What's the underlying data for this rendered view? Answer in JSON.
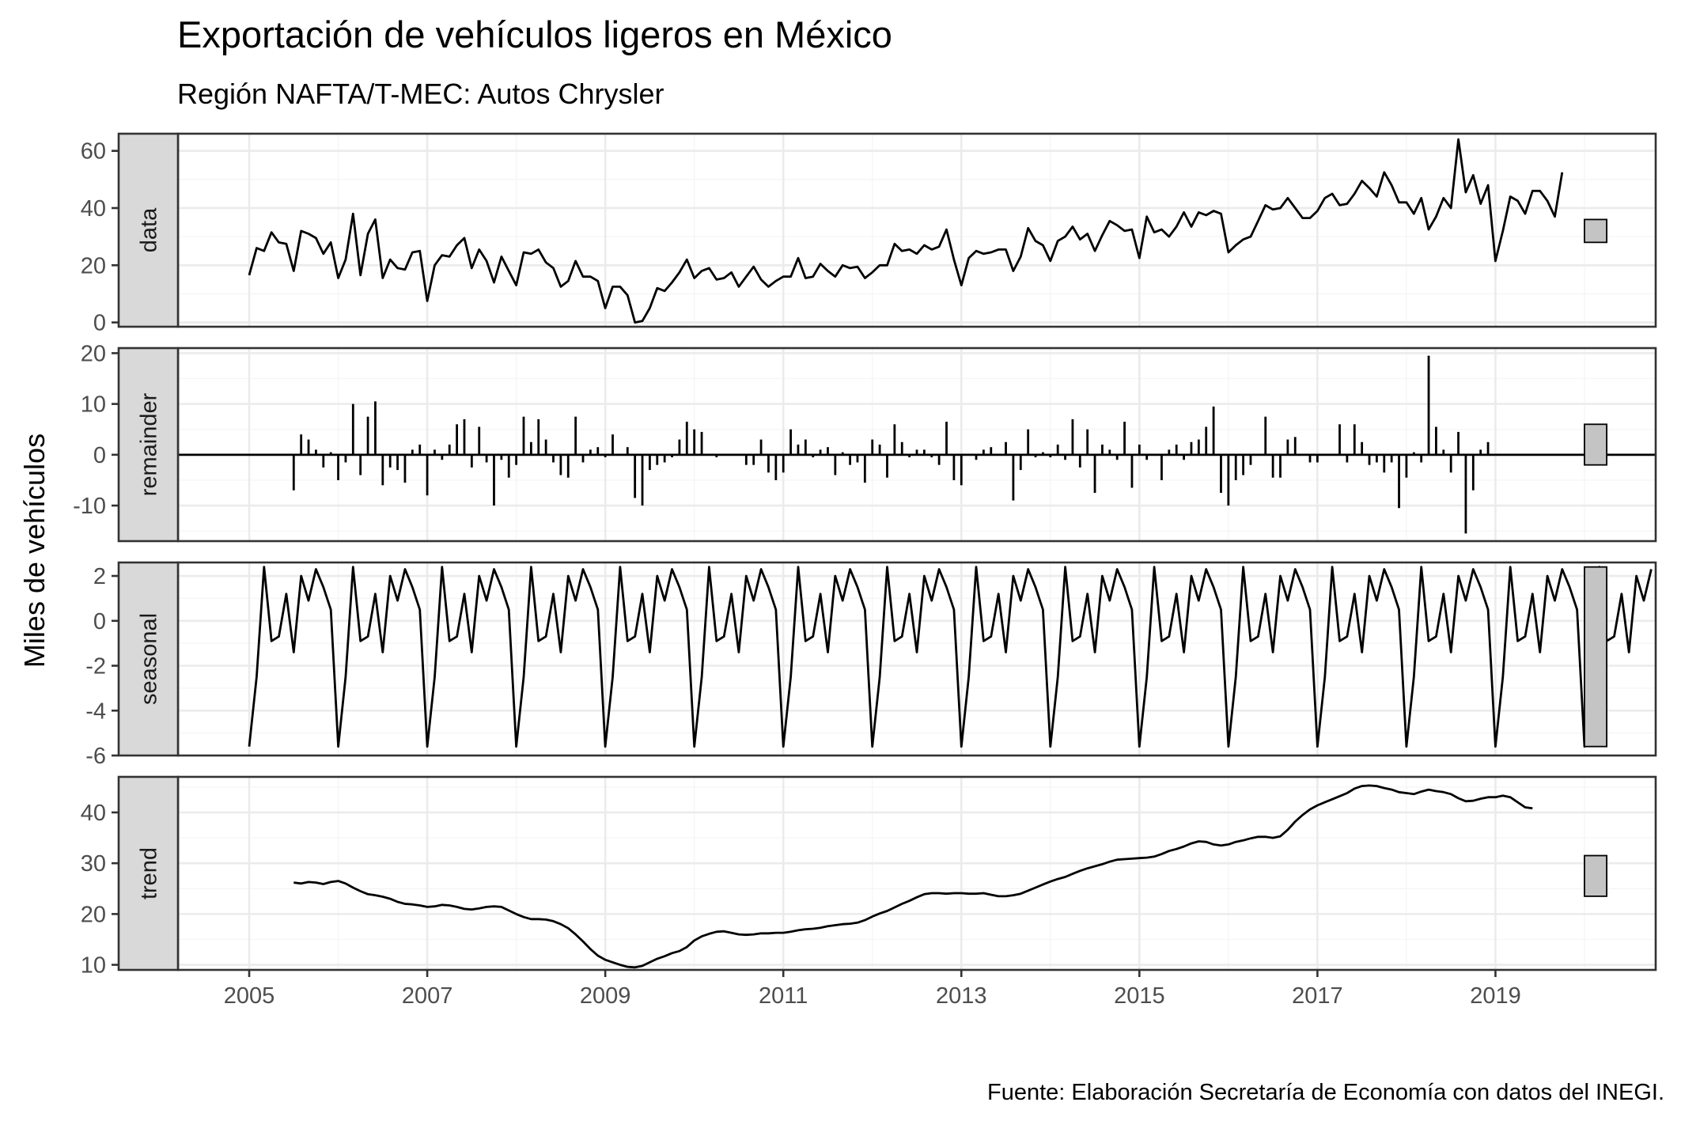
{
  "chart_data": {
    "type": "line",
    "title": "Exportación de vehículos ligeros en México",
    "subtitle": "Región NAFTA/T-MEC: Autos Chrysler",
    "ylabel": "Miles de vehículos",
    "xlabel": "",
    "caption": "Fuente: Elaboración Secretaría de Economía con datos del INEGI.",
    "x_start": 2005.0,
    "x_step_months": 1,
    "xlim": [
      2004.2,
      2020.8
    ],
    "x_ticks": [
      2005,
      2007,
      2009,
      2011,
      2013,
      2015,
      2017,
      2019
    ],
    "x_tick_labels": [
      "2005",
      "2007",
      "2009",
      "2011",
      "2013",
      "2015",
      "2017",
      "2019"
    ],
    "grid": true,
    "panels": [
      {
        "label": "data",
        "kind": "line",
        "ylim": [
          -1.5,
          66
        ],
        "y_ticks": [
          0,
          20,
          40,
          60
        ],
        "y_tick_labels": [
          "0",
          "20",
          "40",
          "60"
        ],
        "range_bar": [
          28,
          36
        ],
        "values": [
          16.5,
          26,
          25,
          31.5,
          28,
          27.5,
          18,
          32,
          31,
          29.5,
          24,
          28,
          15.5,
          22,
          38,
          16.5,
          31,
          36,
          15.5,
          22,
          19,
          18.5,
          24.5,
          25,
          7.5,
          20,
          23.5,
          23,
          27,
          29.5,
          19,
          25.5,
          21.5,
          14,
          23,
          18,
          13,
          24.5,
          24,
          25.5,
          21,
          19,
          12.5,
          14.5,
          21.5,
          16,
          16,
          14.5,
          5,
          12.5,
          12.5,
          9.5,
          0,
          0.5,
          5,
          12,
          11,
          14,
          17.5,
          22,
          15.5,
          18,
          19,
          15,
          15.5,
          17.5,
          12.5,
          16,
          19.5,
          15,
          12.5,
          14.5,
          16,
          16,
          22.5,
          15.5,
          16,
          20.5,
          18,
          16,
          20,
          19,
          19.5,
          15.5,
          17.5,
          20,
          20,
          27.5,
          25,
          25.5,
          24,
          27,
          25.5,
          26.5,
          32.5,
          22,
          13,
          22.5,
          25,
          24,
          24.5,
          25.5,
          25.5,
          18,
          23,
          33,
          28.5,
          27,
          21.5,
          28.5,
          30,
          33.5,
          29,
          31,
          25,
          30.5,
          35.5,
          34,
          32,
          32.5,
          22.5,
          37,
          31.5,
          32.5,
          30,
          33.5,
          38.5,
          33.5,
          38.5,
          37.5,
          39,
          38,
          24.5,
          27,
          29,
          30,
          35.5,
          41,
          39.5,
          40,
          43.5,
          40,
          36.5,
          36.5,
          39,
          43.5,
          45,
          41,
          41.5,
          45,
          49.5,
          47,
          44,
          52.5,
          48,
          42,
          42,
          38,
          43.5,
          32.5,
          37,
          43.5,
          40,
          64,
          45.5,
          51.5,
          41.5,
          48,
          21.5,
          32,
          44,
          42.5,
          38,
          46,
          46,
          42.5,
          37,
          52.5
        ]
      },
      {
        "label": "remainder",
        "kind": "bar",
        "ylim": [
          -17,
          21
        ],
        "y_ticks": [
          -10,
          0,
          10,
          20
        ],
        "y_tick_labels": [
          "-10",
          "0",
          "10",
          "20"
        ],
        "range_bar": [
          -2,
          6
        ],
        "values": [
          0,
          0,
          0,
          0,
          0,
          0,
          -7,
          4,
          3,
          1,
          -2.5,
          0.5,
          -5,
          -1.5,
          10,
          -4,
          7.5,
          10.5,
          -6,
          -2.5,
          -3,
          -5.5,
          1,
          2,
          -8,
          1,
          -1,
          2,
          6,
          7,
          -2.5,
          5.5,
          -1.5,
          -10,
          -1,
          -4.5,
          -2,
          7.5,
          2.5,
          7,
          3,
          -1.5,
          -4,
          -4.5,
          7.5,
          -1.5,
          1,
          1.5,
          -0.5,
          4,
          0,
          1.5,
          -8.5,
          -10,
          -3,
          -2,
          -1.5,
          -0.5,
          3,
          6.5,
          5,
          4.5,
          0,
          -0.5,
          0,
          0,
          0,
          -2,
          -2,
          3,
          -3.5,
          -5,
          -3.5,
          5,
          2,
          3,
          -0.5,
          1,
          1.5,
          -4,
          0.5,
          -2,
          -1.5,
          -5.5,
          3,
          2,
          -4.5,
          6,
          2.5,
          -0.5,
          1,
          1,
          -0.5,
          -2,
          6.5,
          -5,
          -6,
          0,
          -1,
          1,
          1.5,
          0,
          2.5,
          -9,
          -3,
          5,
          -0.5,
          0.5,
          -0.5,
          2,
          -1,
          7,
          -2.5,
          5,
          -7.5,
          2,
          1,
          -1,
          6.5,
          -6.5,
          2,
          -1,
          0,
          -5,
          1,
          2,
          -1,
          2.5,
          3,
          5.5,
          9.5,
          -7.5,
          -10,
          -5,
          -4,
          -2,
          0,
          7.5,
          -4.5,
          -4.5,
          3,
          3.5,
          0,
          -1.5,
          -1.5,
          0,
          0,
          6,
          -1.5,
          6,
          2.5,
          -2,
          -1.5,
          -3.5,
          -1.5,
          -10.5,
          -4.5,
          0.5,
          -1.5,
          19.5,
          5.5,
          1,
          -3.5,
          4.5,
          -15.5,
          -7,
          1,
          2.5
        ]
      },
      {
        "label": "seasonal",
        "kind": "line",
        "ylim": [
          -6,
          2.6
        ],
        "y_ticks": [
          -6,
          -4,
          -2,
          0,
          2
        ],
        "y_tick_labels": [
          "-6",
          "-4",
          "-2",
          "0",
          "2"
        ],
        "range_bar": [
          -5.6,
          2.4
        ],
        "values": [
          -5.6,
          -2.5,
          2.4,
          -0.9,
          -0.7,
          1.2,
          -1.4,
          2,
          0.9,
          2.3,
          1.5,
          0.5,
          -5.6,
          -2.5,
          2.4,
          -0.9,
          -0.7,
          1.2,
          -1.4,
          2,
          0.9,
          2.3,
          1.5,
          0.5,
          -5.6,
          -2.5,
          2.4,
          -0.9,
          -0.7,
          1.2,
          -1.4,
          2,
          0.9,
          2.3,
          1.5,
          0.5,
          -5.6,
          -2.5,
          2.4,
          -0.9,
          -0.7,
          1.2,
          -1.4,
          2,
          0.9,
          2.3,
          1.5,
          0.5,
          -5.6,
          -2.5,
          2.4,
          -0.9,
          -0.7,
          1.2,
          -1.4,
          2,
          0.9,
          2.3,
          1.5,
          0.5,
          -5.6,
          -2.5,
          2.4,
          -0.9,
          -0.7,
          1.2,
          -1.4,
          2,
          0.9,
          2.3,
          1.5,
          0.5,
          -5.6,
          -2.5,
          2.4,
          -0.9,
          -0.7,
          1.2,
          -1.4,
          2,
          0.9,
          2.3,
          1.5,
          0.5,
          -5.6,
          -2.5,
          2.4,
          -0.9,
          -0.7,
          1.2,
          -1.4,
          2,
          0.9,
          2.3,
          1.5,
          0.5,
          -5.6,
          -2.5,
          2.4,
          -0.9,
          -0.7,
          1.2,
          -1.4,
          2,
          0.9,
          2.3,
          1.5,
          0.5,
          -5.6,
          -2.5,
          2.4,
          -0.9,
          -0.7,
          1.2,
          -1.4,
          2,
          0.9,
          2.3,
          1.5,
          0.5,
          -5.6,
          -2.5,
          2.4,
          -0.9,
          -0.7,
          1.2,
          -1.4,
          2,
          0.9,
          2.3,
          1.5,
          0.5,
          -5.6,
          -2.5,
          2.4,
          -0.9,
          -0.7,
          1.2,
          -1.4,
          2,
          0.9,
          2.3,
          1.5,
          0.5,
          -5.6,
          -2.5,
          2.4,
          -0.9,
          -0.7,
          1.2,
          -1.4,
          2,
          0.9,
          2.3,
          1.5,
          0.5,
          -5.6,
          -2.5,
          2.4,
          -0.9,
          -0.7,
          1.2,
          -1.4,
          2,
          0.9,
          2.3,
          1.5,
          0.5,
          -5.6,
          -2.5,
          2.4,
          -0.9,
          -0.7,
          1.2,
          -1.4,
          2,
          0.9,
          2.3,
          1.5,
          0.5,
          -5.6,
          -2.5,
          2.4,
          -0.9,
          -0.7,
          1.2,
          -1.4,
          2,
          0.9,
          2.3
        ]
      },
      {
        "label": "trend",
        "kind": "line",
        "x_offset_months": 6,
        "ylim": [
          9,
          47
        ],
        "y_ticks": [
          10,
          20,
          30,
          40
        ],
        "y_tick_labels": [
          "10",
          "20",
          "30",
          "40"
        ],
        "range_bar": [
          23.5,
          31.5
        ],
        "values": [
          26.2,
          26.0,
          26.3,
          26.2,
          25.9,
          26.3,
          26.5,
          26.0,
          25.2,
          24.5,
          23.9,
          23.7,
          23.4,
          23.0,
          22.4,
          22.0,
          21.9,
          21.7,
          21.4,
          21.5,
          21.8,
          21.7,
          21.4,
          21.0,
          20.9,
          21.1,
          21.4,
          21.5,
          21.4,
          20.7,
          20.0,
          19.4,
          19.0,
          19.0,
          18.9,
          18.6,
          18.0,
          17.2,
          16.0,
          14.6,
          13.1,
          11.8,
          11.0,
          10.5,
          10.0,
          9.6,
          9.5,
          9.8,
          10.5,
          11.2,
          11.7,
          12.3,
          12.7,
          13.5,
          14.8,
          15.6,
          16.1,
          16.5,
          16.6,
          16.3,
          16.0,
          15.9,
          16.0,
          16.2,
          16.2,
          16.3,
          16.3,
          16.5,
          16.8,
          17.0,
          17.1,
          17.3,
          17.6,
          17.8,
          18.0,
          18.1,
          18.3,
          18.8,
          19.5,
          20.1,
          20.6,
          21.3,
          22.0,
          22.6,
          23.3,
          23.9,
          24.1,
          24.1,
          24.0,
          24.1,
          24.1,
          24.0,
          24.0,
          24.1,
          23.8,
          23.5,
          23.5,
          23.7,
          24.0,
          24.6,
          25.2,
          25.8,
          26.4,
          26.9,
          27.3,
          27.9,
          28.5,
          29.0,
          29.4,
          29.8,
          30.3,
          30.7,
          30.8,
          30.9,
          31.0,
          31.1,
          31.3,
          31.8,
          32.4,
          32.8,
          33.3,
          33.9,
          34.3,
          34.2,
          33.7,
          33.5,
          33.7,
          34.2,
          34.5,
          34.9,
          35.2,
          35.2,
          35.0,
          35.3,
          36.6,
          38.2,
          39.5,
          40.6,
          41.4,
          42.0,
          42.6,
          43.2,
          43.8,
          44.7,
          45.2,
          45.3,
          45.2,
          44.8,
          44.5,
          44.0,
          43.8,
          43.6,
          44.1,
          44.5,
          44.2,
          44.0,
          43.6,
          42.8,
          42.2,
          42.3,
          42.7,
          43.0,
          43.0,
          43.3,
          43.0,
          42.0,
          41.0,
          40.8
        ]
      }
    ]
  }
}
